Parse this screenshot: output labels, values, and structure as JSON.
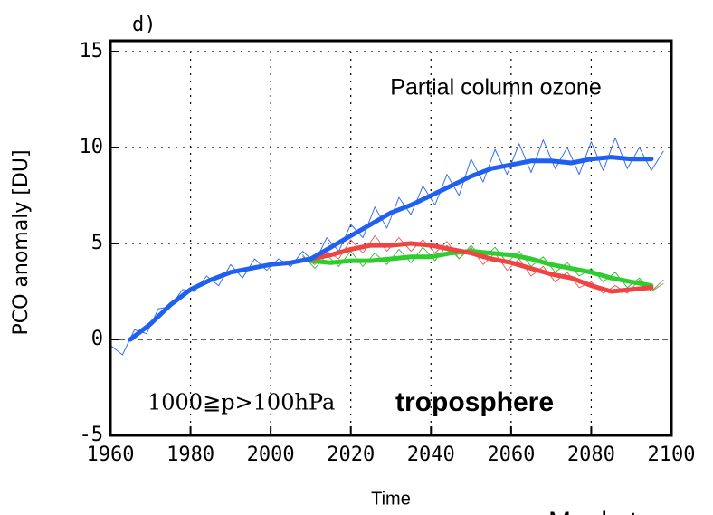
{
  "chart_data": {
    "type": "line",
    "panel_label": "d)",
    "title": "Partial column ozone",
    "y_label": "PCO anomaly [DU]",
    "x_label": "Time",
    "annotation": "1000≧p>100hPa",
    "annotation_highlight": "troposphere",
    "annotation_highlight_color": "#c00000",
    "credit": "Meul et",
    "xlim": [
      1960,
      2100
    ],
    "ylim": [
      -5,
      15
    ],
    "xticks": [
      1960,
      1980,
      2000,
      2020,
      2040,
      2060,
      2080,
      2100
    ],
    "yticks": [
      -5,
      0,
      5,
      10,
      15
    ],
    "grid": true,
    "series": [
      {
        "color": "#3a6fe8",
        "width": 1,
        "x": [
          1960,
          1963,
          1966,
          1969,
          1972,
          1975,
          1978,
          1981,
          1984,
          1987,
          1990,
          1993,
          1996,
          1999,
          2002,
          2005,
          2008,
          2011,
          2014,
          2017,
          2020,
          2023,
          2026,
          2029,
          2032,
          2035,
          2038,
          2041,
          2044,
          2047,
          2050,
          2053,
          2056,
          2059,
          2062,
          2065,
          2068,
          2071,
          2074,
          2077,
          2080,
          2083,
          2086,
          2089,
          2092,
          2095,
          2098
        ],
        "values": [
          -0.3,
          -0.8,
          0.5,
          0.3,
          1.6,
          1.7,
          2.6,
          2.5,
          3.3,
          2.8,
          3.9,
          3.2,
          4.2,
          3.6,
          4.2,
          3.8,
          4.6,
          4.0,
          5.3,
          4.6,
          6.0,
          5.3,
          6.9,
          5.8,
          7.4,
          6.5,
          8.0,
          7.0,
          8.6,
          7.5,
          9.4,
          8.2,
          9.9,
          8.6,
          10.2,
          8.7,
          10.4,
          8.9,
          10.0,
          8.6,
          10.3,
          8.8,
          10.5,
          8.9,
          10.0,
          8.8,
          9.8
        ]
      },
      {
        "color": "#e86060",
        "width": 1,
        "x": [
          2008,
          2011,
          2014,
          2017,
          2020,
          2023,
          2026,
          2029,
          2032,
          2035,
          2038,
          2041,
          2044,
          2047,
          2050,
          2053,
          2056,
          2059,
          2062,
          2065,
          2068,
          2071,
          2074,
          2077,
          2080,
          2083,
          2086,
          2089,
          2092,
          2095,
          2098
        ],
        "values": [
          4.3,
          3.9,
          4.6,
          4.2,
          5.2,
          4.5,
          5.4,
          4.6,
          5.3,
          4.6,
          5.2,
          4.5,
          5.1,
          4.2,
          4.8,
          3.9,
          4.5,
          3.6,
          4.2,
          3.3,
          3.8,
          3.0,
          3.5,
          2.7,
          3.0,
          2.4,
          2.8,
          2.4,
          3.1,
          2.5,
          3.1
        ]
      },
      {
        "color": "#40c040",
        "width": 1,
        "x": [
          2008,
          2011,
          2014,
          2017,
          2020,
          2023,
          2026,
          2029,
          2032,
          2035,
          2038,
          2041,
          2044,
          2047,
          2050,
          2053,
          2056,
          2059,
          2062,
          2065,
          2068,
          2071,
          2074,
          2077,
          2080,
          2083,
          2086,
          2089,
          2092,
          2095,
          2098
        ],
        "values": [
          4.4,
          3.7,
          4.4,
          3.8,
          4.6,
          3.8,
          4.5,
          3.9,
          4.7,
          4.0,
          4.8,
          4.1,
          4.9,
          4.2,
          4.9,
          4.2,
          4.8,
          4.0,
          4.6,
          3.8,
          4.3,
          3.5,
          4.0,
          3.3,
          3.7,
          3.0,
          3.5,
          2.7,
          3.2,
          2.5,
          2.9
        ]
      },
      {
        "color": "#2ecc2e",
        "width": 5,
        "x": [
          2010,
          2015,
          2020,
          2025,
          2030,
          2035,
          2040,
          2045,
          2050,
          2055,
          2060,
          2065,
          2070,
          2075,
          2080,
          2085,
          2090,
          2095
        ],
        "values": [
          4.1,
          4.0,
          4.1,
          4.1,
          4.2,
          4.3,
          4.3,
          4.5,
          4.6,
          4.5,
          4.4,
          4.2,
          3.9,
          3.7,
          3.5,
          3.2,
          3.0,
          2.8
        ]
      },
      {
        "color": "#ee4444",
        "width": 5,
        "x": [
          2010,
          2015,
          2020,
          2025,
          2030,
          2035,
          2040,
          2045,
          2050,
          2055,
          2060,
          2065,
          2070,
          2075,
          2080,
          2085,
          2090,
          2095
        ],
        "values": [
          4.2,
          4.4,
          4.7,
          4.9,
          4.9,
          5.0,
          4.9,
          4.7,
          4.5,
          4.2,
          4.0,
          3.7,
          3.4,
          3.2,
          2.8,
          2.5,
          2.6,
          2.7
        ]
      },
      {
        "color": "#2060f0",
        "width": 5,
        "x": [
          1965,
          1970,
          1975,
          1980,
          1985,
          1990,
          1995,
          2000,
          2005,
          2010,
          2015,
          2020,
          2025,
          2030,
          2035,
          2040,
          2045,
          2050,
          2055,
          2060,
          2065,
          2070,
          2075,
          2080,
          2085,
          2090,
          2095
        ],
        "values": [
          0,
          0.8,
          1.8,
          2.6,
          3.1,
          3.5,
          3.7,
          3.9,
          4.0,
          4.2,
          4.8,
          5.4,
          6.0,
          6.6,
          7.0,
          7.5,
          8.0,
          8.5,
          8.9,
          9.1,
          9.3,
          9.3,
          9.2,
          9.4,
          9.5,
          9.4,
          9.4
        ]
      }
    ]
  }
}
